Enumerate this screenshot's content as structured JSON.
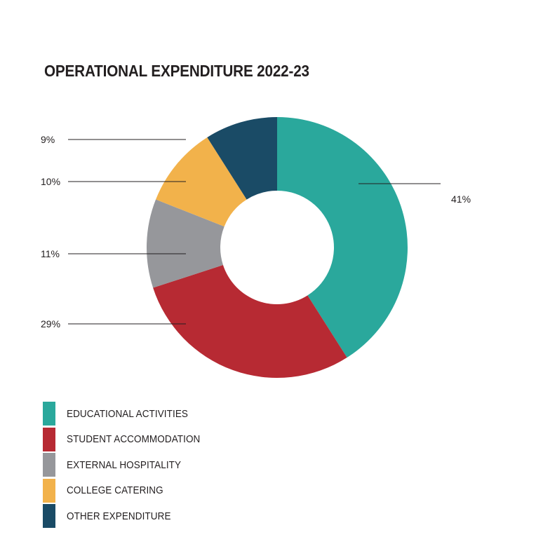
{
  "chart_data": {
    "type": "pie",
    "variant": "donut",
    "title": "OPERATIONAL EXPENDITURE 2022-23",
    "slices": [
      {
        "name": "EDUCATIONAL ACTIVITIES",
        "value": 41,
        "label": "41%",
        "color": "#2aa89c"
      },
      {
        "name": "STUDENT ACCOMMODATION",
        "value": 29,
        "label": "29%",
        "color": "#b72a33"
      },
      {
        "name": "EXTERNAL HOSPITALITY",
        "value": 11,
        "label": "11%",
        "color": "#96979b"
      },
      {
        "name": "COLLEGE CATERING",
        "value": 10,
        "label": "10%",
        "color": "#f2b24b"
      },
      {
        "name": "OTHER EXPENDITURE",
        "value": 9,
        "label": "9%",
        "color": "#1a4b66"
      }
    ],
    "legend_position": "bottom-left"
  }
}
